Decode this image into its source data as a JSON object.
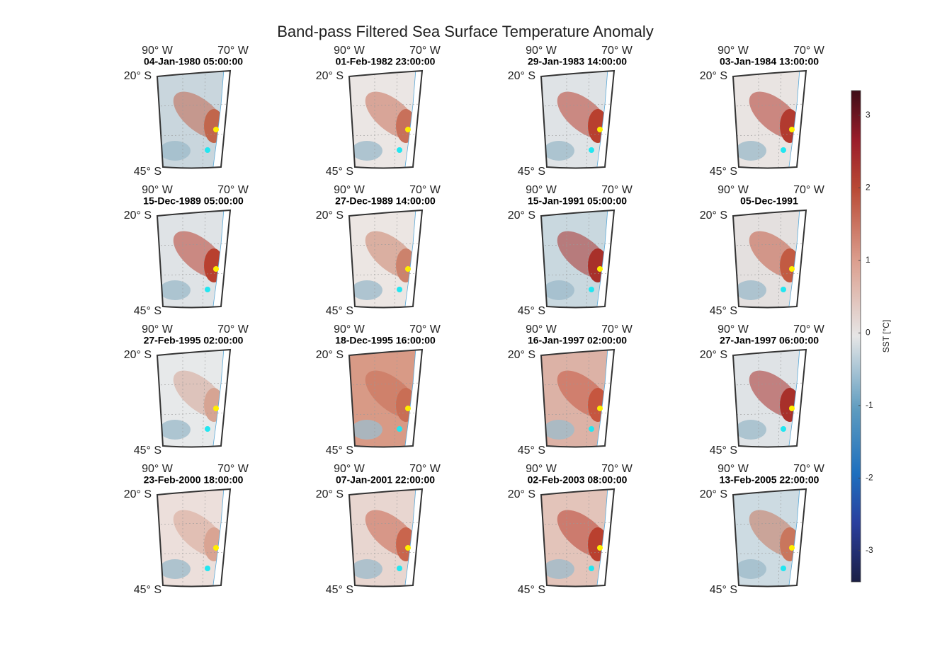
{
  "title": "Band-pass Filtered Sea Surface Temperature Anomaly",
  "panels": [
    {
      "date": "04-Jan-1980 05:00:00",
      "lon_labels": [
        "90° W",
        "70° W"
      ],
      "lat_labels": [
        "20° S",
        "45° S"
      ]
    },
    {
      "date": "01-Feb-1982 23:00:00",
      "lon_labels": [
        "90° W",
        "70° W"
      ],
      "lat_labels": [
        "20° S",
        "45° S"
      ]
    },
    {
      "date": "29-Jan-1983 14:00:00",
      "lon_labels": [
        "90° W",
        "70° W"
      ],
      "lat_labels": [
        "20° S",
        "45° S"
      ]
    },
    {
      "date": "03-Jan-1984 13:00:00",
      "lon_labels": [
        "90° W",
        "70° W"
      ],
      "lat_labels": [
        "20° S",
        "45° S"
      ]
    },
    {
      "date": "15-Dec-1989 05:00:00",
      "lon_labels": [
        "90° W",
        "70° W"
      ],
      "lat_labels": [
        "20° S",
        "45° S"
      ]
    },
    {
      "date": "27-Dec-1989 14:00:00",
      "lon_labels": [
        "90° W",
        "70° W"
      ],
      "lat_labels": [
        "20° S",
        "45° S"
      ]
    },
    {
      "date": "15-Jan-1991 05:00:00",
      "lon_labels": [
        "90° W",
        "70° W"
      ],
      "lat_labels": [
        "20° S",
        "45° S"
      ]
    },
    {
      "date": "05-Dec-1991",
      "lon_labels": [
        "90° W",
        "70° W"
      ],
      "lat_labels": [
        "20° S",
        "45° S"
      ]
    },
    {
      "date": "27-Feb-1995 02:00:00",
      "lon_labels": [
        "90° W",
        "70° W"
      ],
      "lat_labels": [
        "20° S",
        "45° S"
      ]
    },
    {
      "date": "18-Dec-1995 16:00:00",
      "lon_labels": [
        "90° W",
        "70° W"
      ],
      "lat_labels": [
        "20° S",
        "45° S"
      ]
    },
    {
      "date": "16-Jan-1997 02:00:00",
      "lon_labels": [
        "90° W",
        "70° W"
      ],
      "lat_labels": [
        "20° S",
        "45° S"
      ]
    },
    {
      "date": "27-Jan-1997 06:00:00",
      "lon_labels": [
        "90° W",
        "70° W"
      ],
      "lat_labels": [
        "20° S",
        "45° S"
      ]
    },
    {
      "date": "23-Feb-2000 18:00:00",
      "lon_labels": [
        "90° W",
        "70° W"
      ],
      "lat_labels": [
        "20° S",
        "45° S"
      ]
    },
    {
      "date": "07-Jan-2001 22:00:00",
      "lon_labels": [
        "90° W",
        "70° W"
      ],
      "lat_labels": [
        "20° S",
        "45° S"
      ]
    },
    {
      "date": "02-Feb-2003 08:00:00",
      "lon_labels": [
        "90° W",
        "70° W"
      ],
      "lat_labels": [
        "20° S",
        "45° S"
      ]
    },
    {
      "date": "13-Feb-2005 22:00:00",
      "lon_labels": [
        "90° W",
        "70° W"
      ],
      "lat_labels": [
        "20° S",
        "45° S"
      ]
    }
  ],
  "colorbar": {
    "label": "SST [°C]",
    "clim": [
      -3.43,
      3.34
    ],
    "ticks": [
      3,
      2,
      1,
      0,
      -1,
      -2,
      -3
    ]
  }
}
